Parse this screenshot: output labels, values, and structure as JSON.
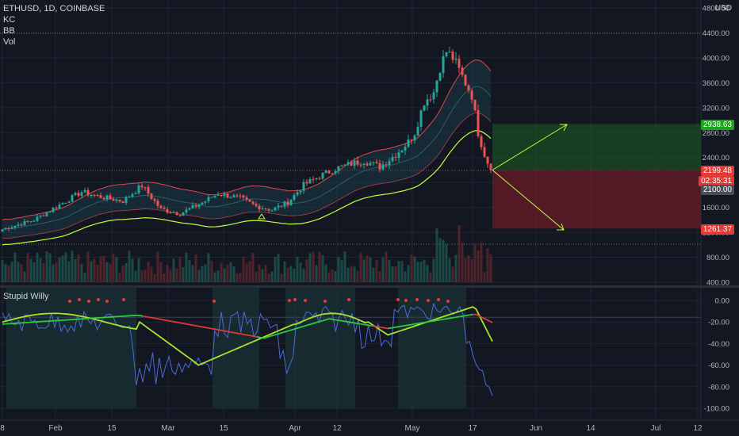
{
  "header": {
    "symbol_line": "ETHUSD, 1D, COINBASE",
    "indicators": [
      "KC",
      "BB",
      "Vol"
    ],
    "currency": "USD"
  },
  "lower_pane": {
    "title": "Stupid Willy"
  },
  "price_tags": {
    "target": "2938.63",
    "last": "2199.48",
    "countdown": "02:35:31",
    "level": "2100.00",
    "stop": "1261.37"
  },
  "colors": {
    "background": "#131722",
    "up": "#26a69a",
    "down": "#ef5350",
    "target_zone": "#1b5e20",
    "stop_zone": "#7f1d2a",
    "arrow": "#c6ff3d",
    "bb_line": "#c6ff3d"
  },
  "chart_data": [
    {
      "type": "candlestick",
      "title": "ETHUSD, 1D, COINBASE",
      "x_tick_labels": [
        "8",
        "Feb",
        "15",
        "Mar",
        "15",
        "Apr",
        "12",
        "May",
        "17",
        "Jun",
        "14",
        "Jul",
        "12"
      ],
      "y_tick_labels": [
        "4800.00",
        "4400.00",
        "4000.00",
        "3600.00",
        "3200.00",
        "2800.00",
        "2400.00",
        "2000.00",
        "1600.00",
        "1200.00",
        "800.00",
        "400.00"
      ],
      "ylim": [
        400,
        4800
      ],
      "approx_close_path": [
        [
          0,
          1250
        ],
        [
          10,
          1400
        ],
        [
          20,
          1700
        ],
        [
          25,
          1850
        ],
        [
          30,
          1780
        ],
        [
          38,
          1700
        ],
        [
          44,
          1950
        ],
        [
          50,
          1570
        ],
        [
          56,
          1500
        ],
        [
          62,
          1650
        ],
        [
          68,
          1820
        ],
        [
          75,
          1750
        ],
        [
          80,
          1620
        ],
        [
          85,
          1560
        ],
        [
          90,
          1680
        ],
        [
          95,
          1960
        ],
        [
          100,
          2100
        ],
        [
          105,
          2220
        ],
        [
          110,
          2300
        ],
        [
          114,
          2350
        ],
        [
          119,
          2250
        ],
        [
          124,
          2450
        ],
        [
          128,
          2650
        ],
        [
          130,
          2800
        ],
        [
          133,
          3300
        ],
        [
          136,
          3450
        ],
        [
          138,
          3850
        ],
        [
          140,
          4100
        ],
        [
          142,
          4000
        ],
        [
          144,
          3800
        ],
        [
          146,
          3600
        ],
        [
          148,
          3400
        ],
        [
          150,
          2800
        ],
        [
          152,
          2450
        ],
        [
          154,
          2199.48
        ]
      ],
      "trade_setup": {
        "entry": 2199.48,
        "target": 2938.63,
        "stop": 1261.37
      }
    },
    {
      "type": "line",
      "title": "Stupid Willy",
      "y_tick_labels": [
        "0.00",
        "-20.00",
        "-40.00",
        "-60.00",
        "-80.00",
        "-100.00"
      ],
      "ylim": [
        -100,
        0
      ]
    }
  ]
}
